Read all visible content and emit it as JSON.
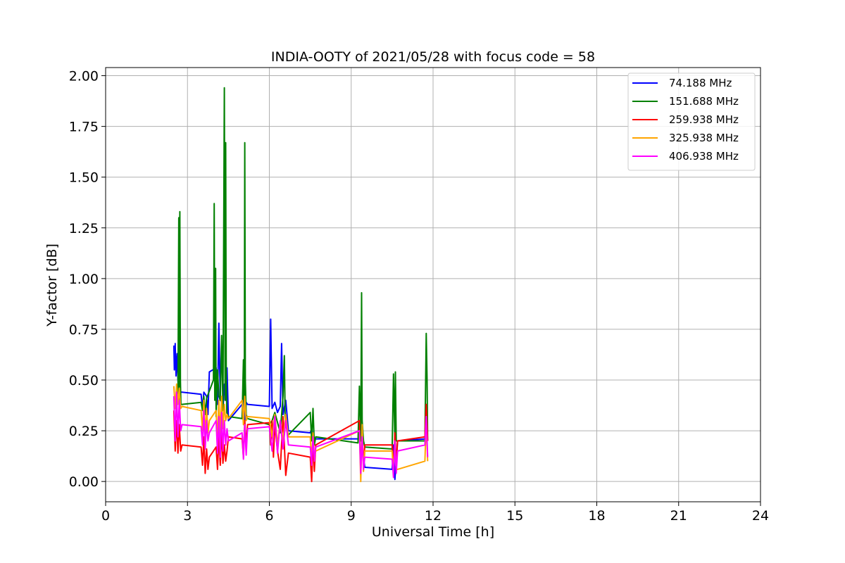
{
  "chart_data": {
    "type": "line",
    "title": "INDIA-OOTY of 2021/05/28 with focus code = 58",
    "xlabel": "Universal Time [h]",
    "ylabel": "Y-factor [dB]",
    "xlim": [
      0,
      24
    ],
    "ylim": [
      -0.1,
      2.04
    ],
    "xticks": [
      0,
      3,
      6,
      9,
      12,
      15,
      18,
      21,
      24
    ],
    "xtick_labels": [
      "0",
      "3",
      "6",
      "9",
      "12",
      "15",
      "18",
      "21",
      "24"
    ],
    "yticks": [
      0.0,
      0.25,
      0.5,
      0.75,
      1.0,
      1.25,
      1.5,
      1.75,
      2.0
    ],
    "ytick_labels": [
      "0.00",
      "0.25",
      "0.50",
      "0.75",
      "1.00",
      "1.25",
      "1.50",
      "1.75",
      "2.00"
    ],
    "grid": true,
    "legend_position": "top-right",
    "series": [
      {
        "name": " 74.188 MHz",
        "color": "#0000ff",
        "x": [
          2.5,
          2.52,
          2.55,
          2.58,
          2.62,
          2.65,
          2.7,
          2.75,
          2.8,
          3.5,
          3.55,
          3.6,
          3.7,
          3.75,
          3.8,
          4.05,
          4.1,
          4.15,
          4.2,
          4.3,
          4.35,
          4.4,
          4.45,
          4.5,
          5.0,
          5.05,
          5.1,
          5.15,
          5.2,
          6.0,
          6.05,
          6.1,
          6.2,
          6.3,
          6.4,
          6.45,
          6.5,
          6.6,
          6.7,
          7.5,
          7.55,
          7.6,
          7.7,
          9.3,
          9.35,
          9.4,
          9.5,
          10.5,
          10.55,
          10.6,
          10.7,
          11.75,
          11.8
        ],
        "y": [
          0.67,
          0.55,
          0.68,
          0.52,
          0.63,
          0.5,
          0.44,
          0.44,
          0.44,
          0.43,
          0.36,
          0.44,
          0.42,
          0.33,
          0.54,
          0.56,
          0.38,
          0.78,
          0.42,
          0.35,
          0.48,
          0.4,
          0.56,
          0.3,
          0.38,
          0.44,
          0.3,
          0.39,
          0.38,
          0.37,
          0.8,
          0.36,
          0.39,
          0.34,
          0.37,
          0.68,
          0.33,
          0.4,
          0.25,
          0.24,
          0.26,
          0.22,
          0.21,
          0.21,
          0.28,
          0.16,
          0.07,
          0.06,
          0.18,
          0.01,
          0.2,
          0.21,
          0.22
        ]
      },
      {
        "name": "151.688 MHz",
        "color": "#008000",
        "x": [
          2.5,
          2.55,
          2.6,
          2.65,
          2.68,
          2.7,
          2.72,
          2.74,
          2.76,
          2.8,
          3.5,
          3.55,
          3.6,
          3.65,
          3.7,
          3.95,
          3.98,
          4.0,
          4.03,
          4.05,
          4.1,
          4.15,
          4.2,
          4.25,
          4.3,
          4.35,
          4.38,
          4.4,
          4.42,
          4.44,
          4.46,
          4.5,
          5.0,
          5.05,
          5.08,
          5.1,
          5.12,
          5.15,
          5.2,
          6.0,
          6.1,
          6.2,
          6.4,
          6.5,
          6.55,
          6.58,
          6.6,
          6.7,
          7.5,
          7.55,
          7.6,
          7.65,
          7.7,
          9.25,
          9.3,
          9.35,
          9.38,
          9.4,
          9.45,
          9.5,
          10.5,
          10.55,
          10.6,
          10.62,
          10.65,
          10.7,
          11.7,
          11.75,
          11.78,
          11.8
        ],
        "y": [
          0.42,
          0.38,
          0.45,
          0.4,
          1.3,
          0.38,
          1.33,
          0.5,
          0.38,
          0.38,
          0.39,
          0.35,
          0.42,
          0.33,
          0.41,
          0.5,
          1.37,
          0.4,
          1.05,
          0.32,
          0.55,
          0.42,
          0.4,
          0.72,
          0.35,
          1.94,
          0.4,
          1.67,
          0.5,
          0.34,
          0.33,
          0.32,
          0.31,
          0.6,
          0.35,
          1.67,
          0.5,
          0.33,
          0.31,
          0.28,
          0.3,
          0.34,
          0.24,
          0.42,
          0.62,
          0.3,
          0.28,
          0.23,
          0.34,
          0.2,
          0.36,
          0.18,
          0.22,
          0.19,
          0.47,
          0.2,
          0.93,
          0.3,
          0.2,
          0.17,
          0.16,
          0.53,
          0.2,
          0.54,
          0.2,
          0.2,
          0.2,
          0.73,
          0.5,
          0.2
        ]
      },
      {
        "name": "259.938 MHz",
        "color": "#ff0000",
        "x": [
          2.5,
          2.55,
          2.6,
          2.65,
          2.7,
          2.75,
          2.8,
          3.5,
          3.55,
          3.6,
          3.65,
          3.7,
          3.75,
          3.8,
          4.05,
          4.1,
          4.15,
          4.2,
          4.25,
          4.3,
          4.35,
          4.4,
          4.45,
          4.5,
          5.0,
          5.05,
          5.1,
          5.15,
          5.2,
          6.0,
          6.05,
          6.1,
          6.15,
          6.2,
          6.3,
          6.4,
          6.5,
          6.6,
          6.7,
          7.5,
          7.55,
          7.6,
          7.65,
          7.7,
          9.3,
          9.35,
          9.4,
          9.45,
          9.5,
          10.5,
          10.55,
          10.6,
          10.65,
          10.7,
          11.7,
          11.75,
          11.8
        ],
        "y": [
          0.35,
          0.15,
          0.3,
          0.14,
          0.28,
          0.15,
          0.18,
          0.17,
          0.08,
          0.22,
          0.04,
          0.16,
          0.06,
          0.12,
          0.17,
          0.06,
          0.22,
          0.08,
          0.25,
          0.09,
          0.18,
          0.1,
          0.15,
          0.22,
          0.21,
          0.12,
          0.3,
          0.18,
          0.28,
          0.29,
          0.18,
          0.3,
          0.12,
          0.28,
          0.15,
          0.06,
          0.32,
          0.03,
          0.14,
          0.12,
          0.0,
          0.2,
          0.05,
          0.18,
          0.3,
          0.05,
          0.22,
          0.08,
          0.18,
          0.18,
          0.05,
          0.24,
          0.08,
          0.2,
          0.22,
          0.38,
          0.2
        ]
      },
      {
        "name": "325.938 MHz",
        "color": "#ffa500",
        "x": [
          2.5,
          2.55,
          2.6,
          2.65,
          2.7,
          2.75,
          2.8,
          3.5,
          3.55,
          3.6,
          3.65,
          3.7,
          3.75,
          3.8,
          4.05,
          4.1,
          4.15,
          4.2,
          4.25,
          4.3,
          4.35,
          4.4,
          4.45,
          4.5,
          5.0,
          5.05,
          5.1,
          5.15,
          5.2,
          6.0,
          6.1,
          6.2,
          6.3,
          6.4,
          6.5,
          6.6,
          6.7,
          7.5,
          7.55,
          7.6,
          7.65,
          7.7,
          9.3,
          9.35,
          9.4,
          9.45,
          9.5,
          10.5,
          10.55,
          10.6,
          10.65,
          10.7,
          11.7,
          11.75,
          11.8
        ],
        "y": [
          0.47,
          0.36,
          0.48,
          0.38,
          0.46,
          0.36,
          0.37,
          0.35,
          0.25,
          0.4,
          0.22,
          0.36,
          0.24,
          0.3,
          0.35,
          0.2,
          0.4,
          0.22,
          0.42,
          0.26,
          0.38,
          0.3,
          0.33,
          0.31,
          0.4,
          0.28,
          0.42,
          0.3,
          0.32,
          0.31,
          0.22,
          0.33,
          0.18,
          0.3,
          0.2,
          0.33,
          0.22,
          0.22,
          0.1,
          0.24,
          0.12,
          0.15,
          0.25,
          0.0,
          0.28,
          0.05,
          0.15,
          0.15,
          0.03,
          0.2,
          0.06,
          0.06,
          0.1,
          0.3,
          0.1
        ]
      },
      {
        "name": "406.938 MHz",
        "color": "#ff00ff",
        "x": [
          2.5,
          2.55,
          2.6,
          2.65,
          2.7,
          2.75,
          2.8,
          3.5,
          3.55,
          3.6,
          3.65,
          3.7,
          3.75,
          3.8,
          4.05,
          4.1,
          4.15,
          4.2,
          4.25,
          4.3,
          4.35,
          4.4,
          4.45,
          4.5,
          5.0,
          5.05,
          5.1,
          5.15,
          5.2,
          6.0,
          6.1,
          6.2,
          6.3,
          6.4,
          6.5,
          6.6,
          6.7,
          7.5,
          7.55,
          7.6,
          7.65,
          7.7,
          9.3,
          9.35,
          9.4,
          9.45,
          9.5,
          10.5,
          10.55,
          10.6,
          10.65,
          10.7,
          11.7,
          11.75,
          11.8
        ],
        "y": [
          0.42,
          0.2,
          0.44,
          0.22,
          0.4,
          0.25,
          0.28,
          0.27,
          0.18,
          0.35,
          0.16,
          0.3,
          0.2,
          0.24,
          0.3,
          0.14,
          0.32,
          0.12,
          0.34,
          0.15,
          0.3,
          0.18,
          0.26,
          0.2,
          0.24,
          0.11,
          0.28,
          0.13,
          0.26,
          0.27,
          0.15,
          0.32,
          0.14,
          0.3,
          0.16,
          0.3,
          0.18,
          0.17,
          0.08,
          0.22,
          0.1,
          0.17,
          0.25,
          0.04,
          0.22,
          0.06,
          0.12,
          0.11,
          0.02,
          0.2,
          0.04,
          0.15,
          0.18,
          0.32,
          0.12
        ]
      }
    ]
  }
}
